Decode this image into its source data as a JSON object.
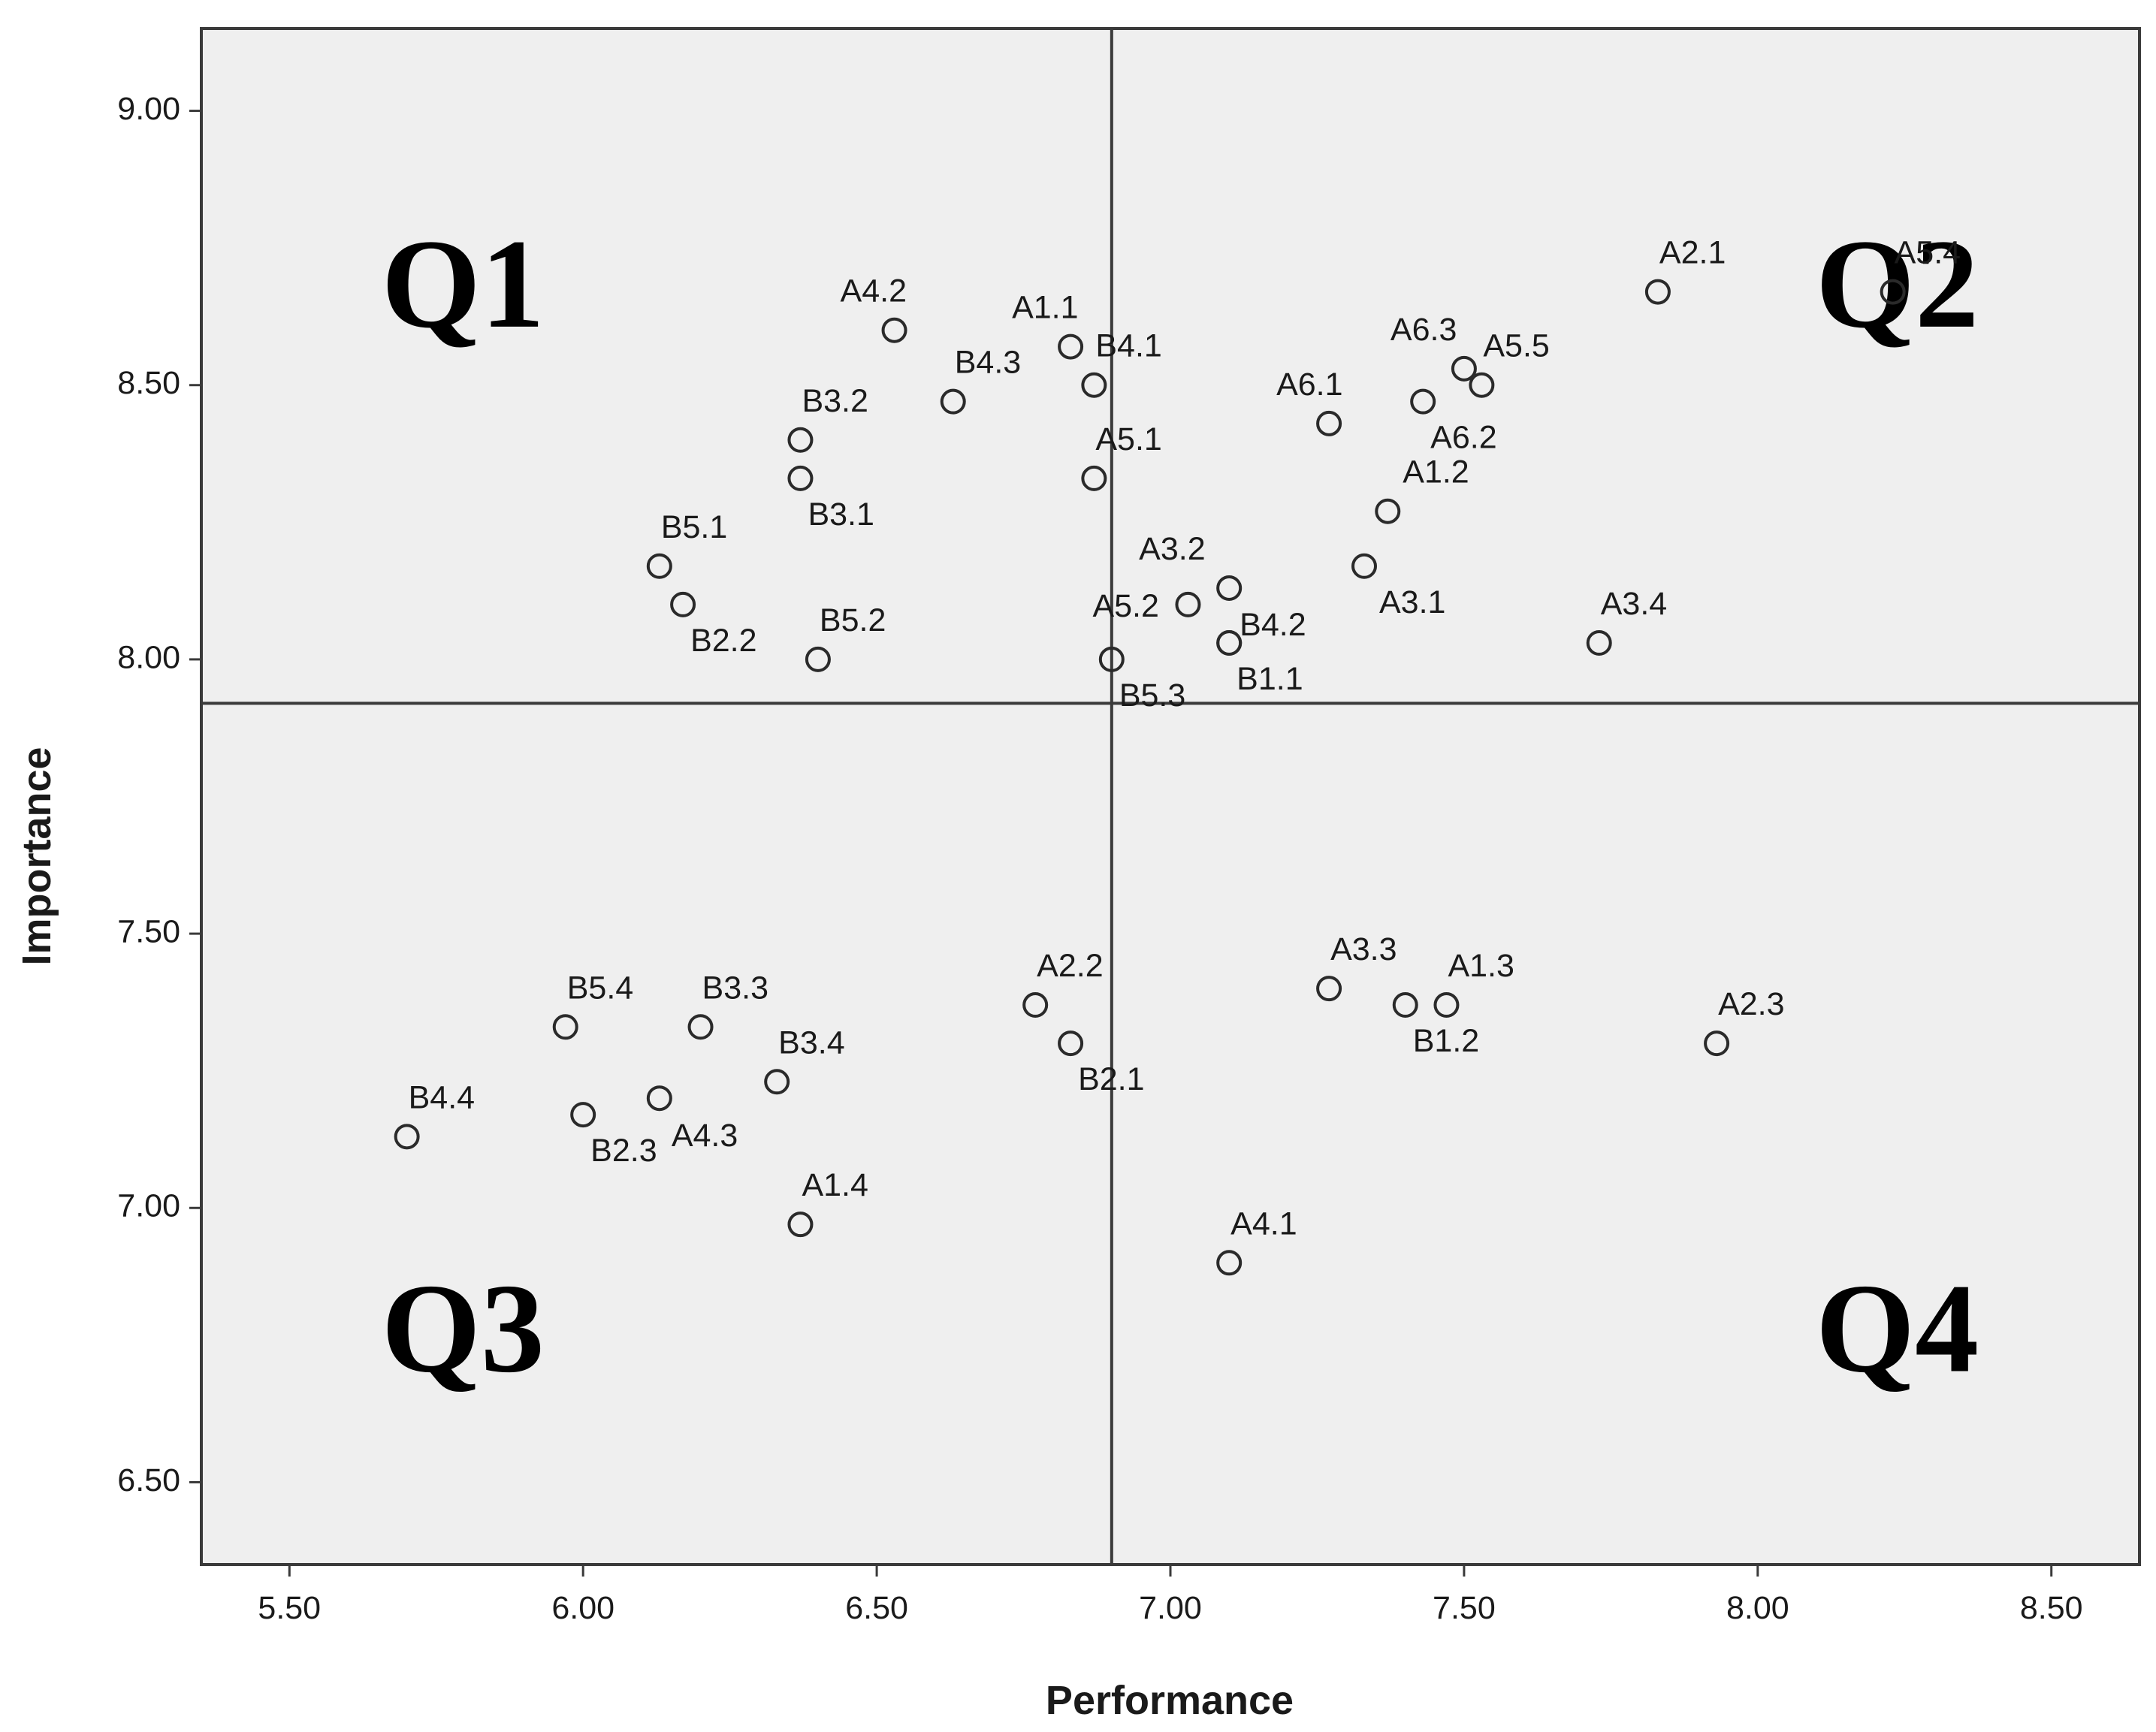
{
  "chart_data": {
    "type": "scatter",
    "xlabel": "Performance",
    "ylabel": "Importance",
    "xlim": [
      5.35,
      8.65
    ],
    "ylim": [
      6.35,
      9.15
    ],
    "x_ticks": [
      "5.50",
      "6.00",
      "6.50",
      "7.00",
      "7.50",
      "8.00",
      "8.50"
    ],
    "y_ticks": [
      "6.50",
      "7.00",
      "7.50",
      "8.00",
      "8.50",
      "9.00"
    ],
    "grid": false,
    "reference_lines": {
      "x": 6.9,
      "y": 7.92
    },
    "quadrant_labels": [
      "Q1",
      "Q2",
      "Q3",
      "Q4"
    ],
    "points": [
      {
        "label": "A4.2",
        "x": 6.53,
        "y": 8.6
      },
      {
        "label": "A1.1",
        "x": 6.83,
        "y": 8.57
      },
      {
        "label": "B4.1",
        "x": 6.87,
        "y": 8.5
      },
      {
        "label": "B4.3",
        "x": 6.63,
        "y": 8.47
      },
      {
        "label": "B3.2",
        "x": 6.37,
        "y": 8.4
      },
      {
        "label": "B3.1",
        "x": 6.37,
        "y": 8.33
      },
      {
        "label": "A5.1",
        "x": 6.87,
        "y": 8.33
      },
      {
        "label": "B5.1",
        "x": 6.13,
        "y": 8.17
      },
      {
        "label": "B2.2",
        "x": 6.17,
        "y": 8.1
      },
      {
        "label": "B5.2",
        "x": 6.4,
        "y": 8.0
      },
      {
        "label": "A3.2",
        "x": 7.1,
        "y": 8.13
      },
      {
        "label": "A5.2",
        "x": 7.03,
        "y": 8.1
      },
      {
        "label": "B4.2",
        "x": 7.1,
        "y": 8.03
      },
      {
        "label": "B5.3",
        "x": 6.9,
        "y": 8.0
      },
      {
        "label": "B1.1",
        "x": 7.1,
        "y": 8.03
      },
      {
        "label": "A2.1",
        "x": 7.83,
        "y": 8.67
      },
      {
        "label": "A5.4",
        "x": 8.23,
        "y": 8.67
      },
      {
        "label": "A6.3",
        "x": 7.5,
        "y": 8.53
      },
      {
        "label": "A5.5",
        "x": 7.53,
        "y": 8.5
      },
      {
        "label": "A6.1",
        "x": 7.27,
        "y": 8.43
      },
      {
        "label": "A6.2",
        "x": 7.43,
        "y": 8.47
      },
      {
        "label": "A1.2",
        "x": 7.37,
        "y": 8.27
      },
      {
        "label": "A3.1",
        "x": 7.33,
        "y": 8.17
      },
      {
        "label": "A3.4",
        "x": 7.73,
        "y": 8.03
      },
      {
        "label": "B5.4",
        "x": 5.97,
        "y": 7.33
      },
      {
        "label": "B3.3",
        "x": 6.2,
        "y": 7.33
      },
      {
        "label": "B3.4",
        "x": 6.33,
        "y": 7.23
      },
      {
        "label": "B4.4",
        "x": 5.7,
        "y": 7.13
      },
      {
        "label": "B2.3",
        "x": 6.0,
        "y": 7.17
      },
      {
        "label": "A4.3",
        "x": 6.13,
        "y": 7.2
      },
      {
        "label": "A1.4",
        "x": 6.37,
        "y": 6.97
      },
      {
        "label": "A2.2",
        "x": 6.77,
        "y": 7.37
      },
      {
        "label": "B2.1",
        "x": 6.83,
        "y": 7.3
      },
      {
        "label": "A3.3",
        "x": 7.27,
        "y": 7.4
      },
      {
        "label": "A1.3",
        "x": 7.47,
        "y": 7.37
      },
      {
        "label": "B1.2",
        "x": 7.4,
        "y": 7.37
      },
      {
        "label": "A2.3",
        "x": 7.93,
        "y": 7.3
      },
      {
        "label": "A4.1",
        "x": 7.1,
        "y": 6.9
      }
    ]
  }
}
